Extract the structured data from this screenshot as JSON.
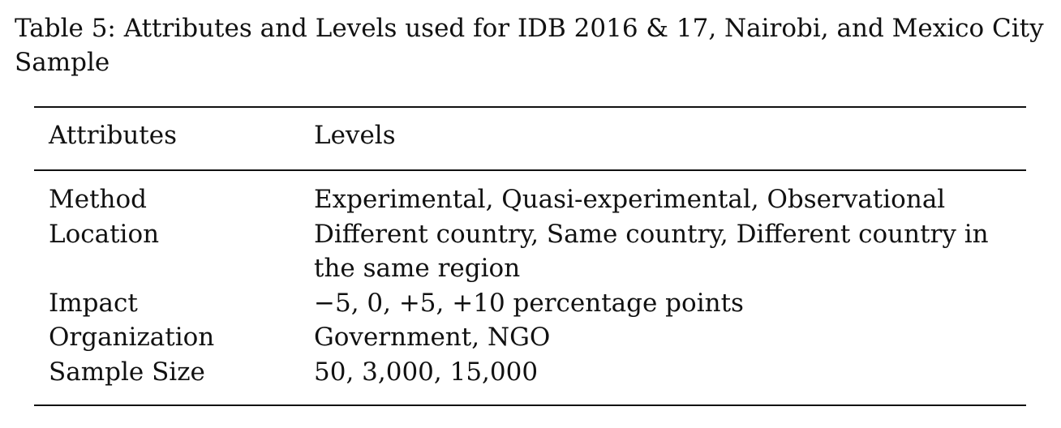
{
  "caption": "Table 5: Attributes and Levels used for IDB 2016 & 17, Nairobi, and Mexico City Sample",
  "table": {
    "headers": {
      "attributes": "Attributes",
      "levels": "Levels"
    },
    "rows": [
      {
        "attribute": "Method",
        "levels": "Experimental, Quasi-experimental, Observational"
      },
      {
        "attribute": "Location",
        "levels": "Different country, Same country, Different country in the same region"
      },
      {
        "attribute": "Impact",
        "levels": "−5, 0, +5, +10 percentage points"
      },
      {
        "attribute": "Organization",
        "levels": "Government, NGO"
      },
      {
        "attribute": "Sample Size",
        "levels": "50, 3,000, 15,000"
      }
    ]
  }
}
